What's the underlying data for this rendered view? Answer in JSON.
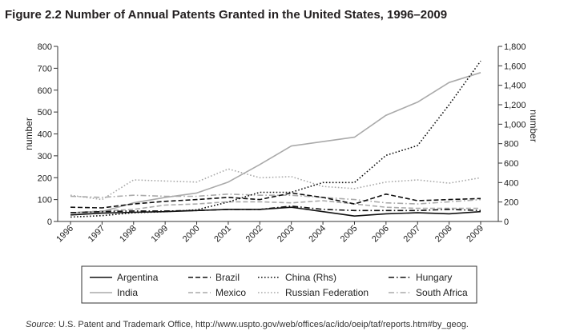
{
  "figure": {
    "title": "Figure 2.2  Number of Annual Patents Granted in the United States, 1996–2009",
    "source_label": "Source:",
    "source_text": " U.S. Patent and Trademark Office, http://www.uspto.gov/web/offices/ac/ido/oeip/taf/reports.htm#by_geog."
  },
  "chart_data": {
    "type": "line",
    "title": "Number of Annual Patents Granted in the United States, 1996–2009",
    "ylabel": "number",
    "y2label": "number",
    "ylim": [
      0,
      800
    ],
    "y2lim": [
      0,
      1800
    ],
    "yticks": [
      0,
      100,
      200,
      300,
      400,
      500,
      600,
      700,
      800
    ],
    "y2ticks": [
      0,
      200,
      400,
      600,
      800,
      1000,
      1200,
      1400,
      1600,
      1800
    ],
    "y2tick_labels": [
      "0",
      "200",
      "400",
      "600",
      "800",
      "1,000",
      "1,200",
      "1,400",
      "1,600",
      "1,800"
    ],
    "x": [
      "1996",
      "1997",
      "1998",
      "1999",
      "2000",
      "2001",
      "2002",
      "2003",
      "2004",
      "2005",
      "2006",
      "2007",
      "2008",
      "2009"
    ],
    "grid": false,
    "legend_position": "bottom",
    "series": [
      {
        "name": "Argentina",
        "axis": "left",
        "style": "solid",
        "color": "#111111",
        "values": [
          30,
          38,
          42,
          45,
          50,
          55,
          55,
          65,
          45,
          25,
          35,
          40,
          35,
          45
        ]
      },
      {
        "name": "Brazil",
        "axis": "left",
        "style": "dashed",
        "color": "#111111",
        "values": [
          65,
          62,
          80,
          92,
          100,
          110,
          100,
          130,
          110,
          80,
          125,
          95,
          100,
          105
        ]
      },
      {
        "name": "China (Rhs)",
        "axis": "right",
        "style": "dotted",
        "color": "#111111",
        "values": [
          45,
          60,
          90,
          100,
          120,
          200,
          300,
          300,
          400,
          400,
          680,
          780,
          1200,
          1650
        ]
      },
      {
        "name": "Hungary",
        "axis": "left",
        "style": "dashdot",
        "color": "#111111",
        "values": [
          40,
          45,
          48,
          48,
          50,
          55,
          55,
          70,
          55,
          50,
          50,
          50,
          55,
          50
        ]
      },
      {
        "name": "India",
        "axis": "left",
        "style": "solid",
        "color": "#aaaaaa",
        "values": [
          40,
          45,
          85,
          110,
          130,
          180,
          260,
          345,
          365,
          385,
          485,
          545,
          635,
          680
        ]
      },
      {
        "name": "Mexico",
        "axis": "left",
        "style": "dashed",
        "color": "#aaaaaa",
        "values": [
          40,
          48,
          55,
          75,
          80,
          90,
          90,
          85,
          95,
          80,
          65,
          60,
          60,
          60
        ]
      },
      {
        "name": "Russian Federation",
        "axis": "left",
        "style": "dotted",
        "color": "#aaaaaa",
        "values": [
          120,
          100,
          190,
          185,
          180,
          240,
          200,
          205,
          160,
          150,
          180,
          190,
          175,
          200
        ]
      },
      {
        "name": "South Africa",
        "axis": "left",
        "style": "dashdot",
        "color": "#aaaaaa",
        "values": [
          115,
          110,
          120,
          115,
          115,
          125,
          120,
          120,
          110,
          100,
          85,
          80,
          90,
          100
        ]
      }
    ]
  }
}
